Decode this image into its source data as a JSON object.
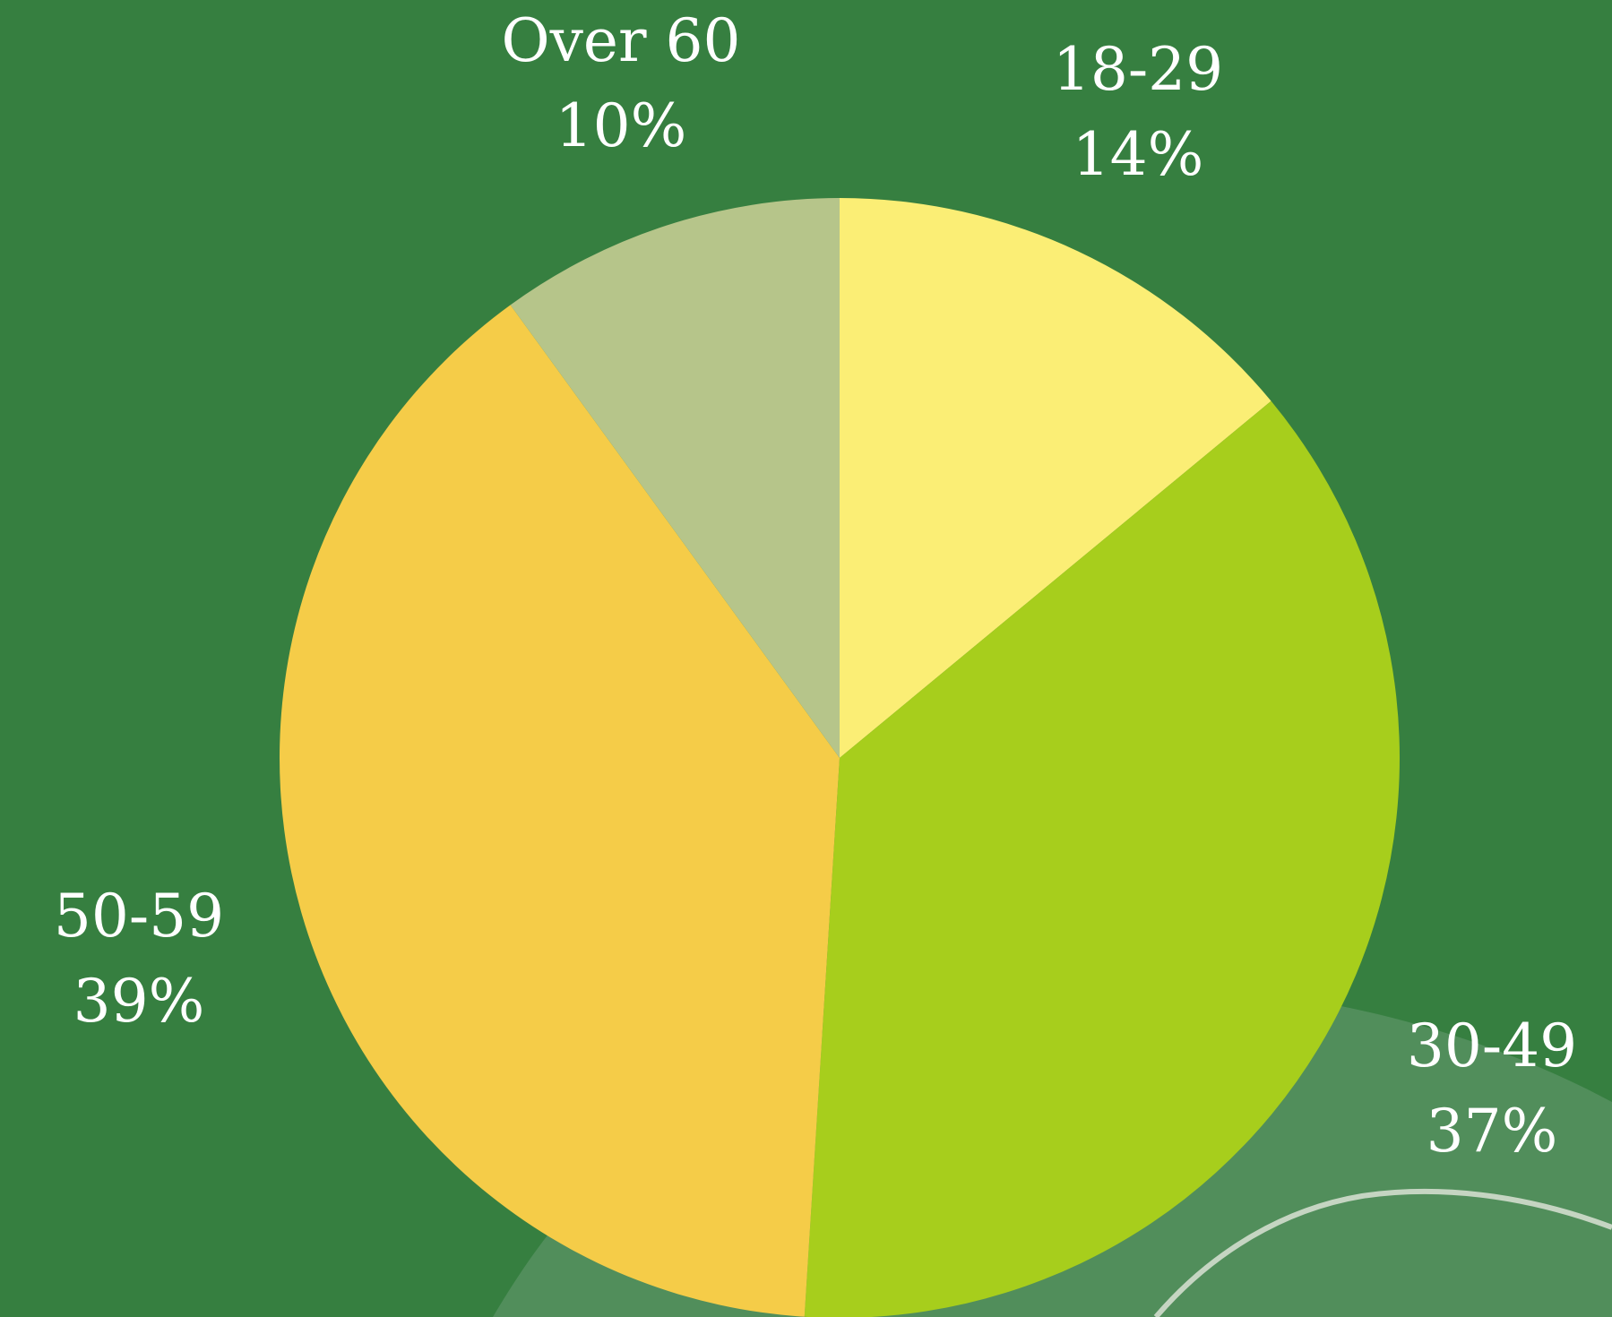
{
  "colors": {
    "background": "#367F40",
    "decor_blob": "#518E5B",
    "decor_line": "#C5D5C2",
    "label_text": "#FFFFFF"
  },
  "chart_data": {
    "type": "pie",
    "title": "",
    "start": "12 o'clock",
    "direction": "clockwise",
    "labels_outside": true,
    "slices": [
      {
        "label": "18-29",
        "value": 14,
        "value_label": "14%",
        "color": "#FBEE75"
      },
      {
        "label": "30-49",
        "value": 37,
        "value_label": "37%",
        "color": "#A7CE1C"
      },
      {
        "label": "50-59",
        "value": 39,
        "value_label": "39%",
        "color": "#F5CC48"
      },
      {
        "label": "Over 60",
        "value": 10,
        "value_label": "10%",
        "color": "#B6C58A"
      }
    ]
  }
}
